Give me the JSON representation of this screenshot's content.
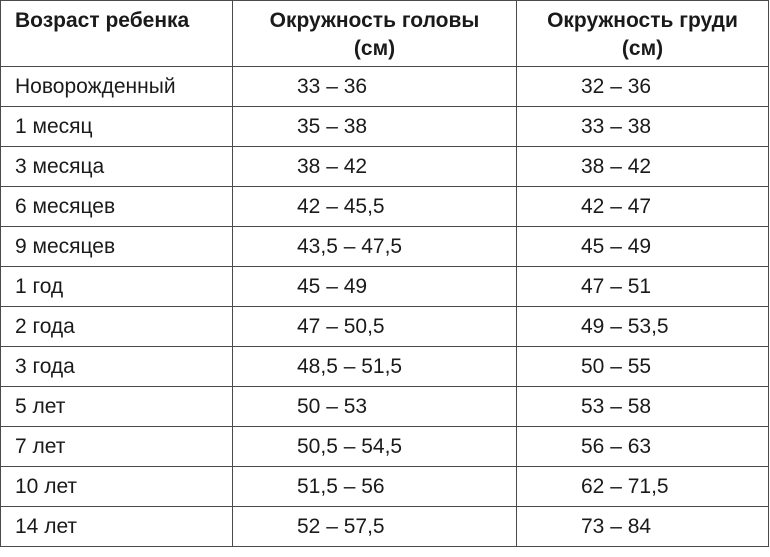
{
  "table": {
    "headers": {
      "age": "Возраст ребенка",
      "head_line1": "Окружность головы",
      "head_line2": "(см)",
      "chest_line1": "Окружность груди",
      "chest_line2": "(см)"
    },
    "rows": [
      {
        "age": "Новорожденный",
        "head": "33 – 36",
        "chest": "32 – 36"
      },
      {
        "age": "1 месяц",
        "head": "35 – 38",
        "chest": "33 – 38"
      },
      {
        "age": "3 месяца",
        "head": "38 – 42",
        "chest": "38 – 42"
      },
      {
        "age": "6 месяцев",
        "head": "42 – 45,5",
        "chest": "42 – 47"
      },
      {
        "age": "9 месяцев",
        "head": "43,5 – 47,5",
        "chest": "45 – 49"
      },
      {
        "age": "1 год",
        "head": "45 – 49",
        "chest": "47 – 51"
      },
      {
        "age": "2 года",
        "head": "47 – 50,5",
        "chest": "49 – 53,5"
      },
      {
        "age": "3 года",
        "head": "48,5 – 51,5",
        "chest": "50 – 55"
      },
      {
        "age": "5 лет",
        "head": "50 – 53",
        "chest": "53 – 58"
      },
      {
        "age": "7 лет",
        "head": "50,5 – 54,5",
        "chest": "56 – 63"
      },
      {
        "age": "10 лет",
        "head": "51,5 – 56",
        "chest": "62 – 71,5"
      },
      {
        "age": "14 лет",
        "head": "52 – 57,5",
        "chest": "73 – 84"
      }
    ]
  }
}
